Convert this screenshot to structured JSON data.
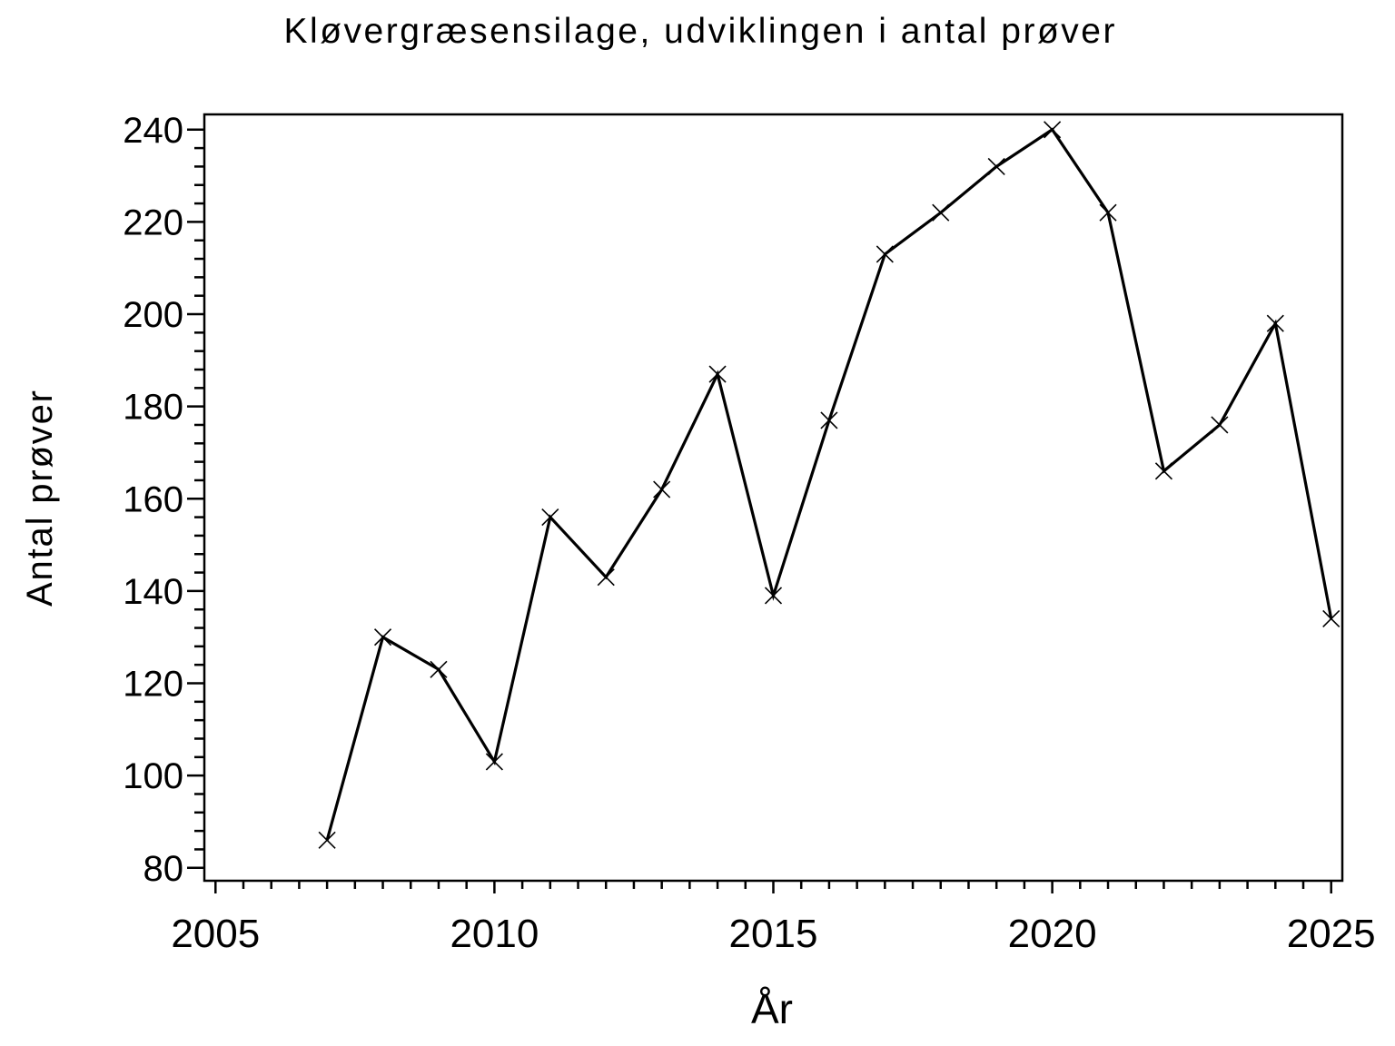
{
  "page": {
    "background": "#ffffff",
    "foreground": "#000000"
  },
  "chart_data": {
    "type": "line",
    "title": "Kløvergræsensilage, udviklingen i antal prøver",
    "xlabel": "År",
    "ylabel": "Antal prøver",
    "x": [
      2007,
      2008,
      2009,
      2010,
      2011,
      2012,
      2013,
      2014,
      2015,
      2016,
      2017,
      2018,
      2019,
      2020,
      2021,
      2022,
      2023,
      2024,
      2025
    ],
    "values": [
      86,
      130,
      123,
      103,
      156,
      143,
      162,
      187,
      139,
      177,
      213,
      222,
      232,
      240,
      222,
      166,
      176,
      198,
      134
    ],
    "series_name": "Antal prøver",
    "marker": "x",
    "x_ticks": [
      2005,
      2010,
      2015,
      2020,
      2025
    ],
    "y_ticks": [
      80,
      100,
      120,
      140,
      160,
      180,
      200,
      220,
      240
    ],
    "x_minor_step": 0.5,
    "y_minor_step": 4,
    "xlim": [
      2004.8,
      2025.2
    ],
    "ylim": [
      77.2,
      243.3
    ],
    "grid": "off",
    "legend": "none",
    "line_color": "#000000",
    "axis_color": "#000000",
    "plot_background": "#ffffff"
  }
}
